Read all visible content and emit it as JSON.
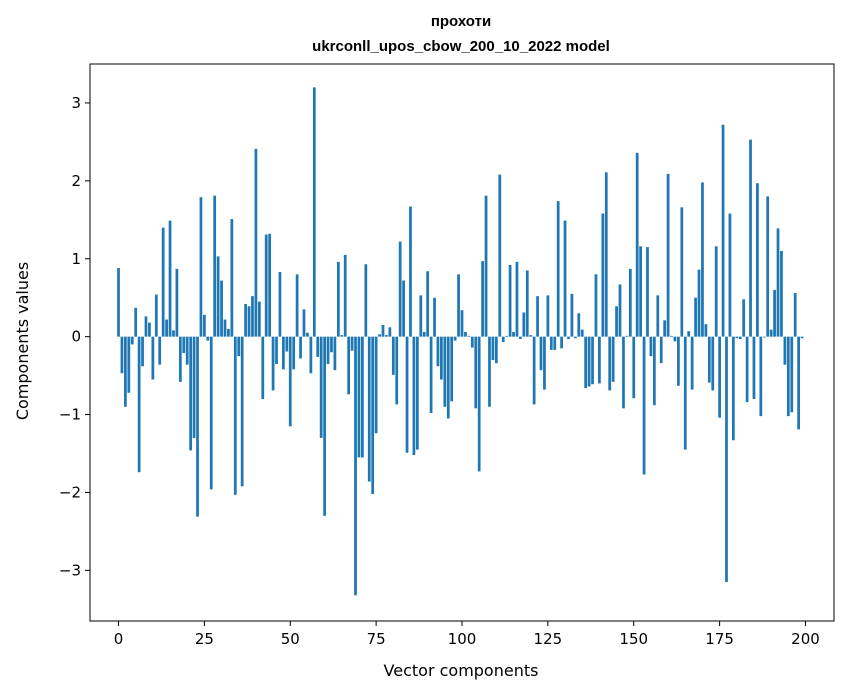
{
  "chart_data": {
    "type": "bar",
    "title_line1": "прохоти",
    "title_line2": "ukrconll_upos_cbow_200_10_2022 model",
    "xlabel": "Vector components",
    "ylabel": "Components values",
    "xlim": [
      -8.3,
      208.3
    ],
    "ylim": [
      -3.65,
      3.5
    ],
    "x_ticks": [
      0,
      25,
      50,
      75,
      100,
      125,
      150,
      175,
      200
    ],
    "y_ticks": [
      -3,
      -2,
      -1,
      0,
      1,
      2,
      3
    ],
    "y_tick_labels": [
      "−3",
      "−2",
      "−1",
      "0",
      "1",
      "2",
      "3"
    ],
    "bar_color": "#1f77b4",
    "values": [
      0.88,
      -0.47,
      -0.9,
      -0.72,
      -0.1,
      0.37,
      -1.74,
      -0.38,
      0.26,
      0.18,
      -0.55,
      0.54,
      -0.36,
      1.4,
      0.22,
      1.49,
      0.08,
      0.87,
      -0.58,
      -0.21,
      -0.36,
      -1.46,
      -1.3,
      -2.31,
      1.79,
      0.28,
      -0.05,
      -1.96,
      1.81,
      1.03,
      0.72,
      0.22,
      0.1,
      1.51,
      -2.03,
      -0.25,
      -1.92,
      0.42,
      0.39,
      0.52,
      2.41,
      0.45,
      -0.8,
      1.31,
      1.32,
      -0.69,
      -0.35,
      0.83,
      -0.42,
      -0.19,
      -1.15,
      -0.42,
      0.8,
      -0.28,
      0.35,
      0.05,
      -0.47,
      3.2,
      -0.26,
      -1.3,
      -2.3,
      -0.35,
      -0.2,
      -0.43,
      0.96,
      0.02,
      1.05,
      -0.74,
      -0.18,
      -3.32,
      -1.55,
      -1.55,
      0.93,
      -1.86,
      -2.02,
      -1.24,
      0.03,
      0.15,
      0.02,
      0.12,
      -0.49,
      -0.87,
      1.22,
      0.72,
      -1.49,
      1.67,
      -1.52,
      -1.45,
      0.53,
      0.06,
      0.84,
      -0.98,
      0.5,
      -0.38,
      -0.55,
      -0.9,
      -1.05,
      -0.83,
      -0.05,
      0.8,
      0.34,
      0.06,
      0.01,
      -0.14,
      -0.92,
      -1.73,
      0.97,
      1.81,
      -0.9,
      -0.3,
      -0.34,
      2.08,
      -0.07,
      0.01,
      0.92,
      0.06,
      0.96,
      -0.03,
      0.31,
      0.85,
      0.02,
      -0.87,
      0.52,
      -0.43,
      -0.68,
      0.53,
      -0.17,
      -0.17,
      1.74,
      -0.15,
      1.49,
      -0.03,
      0.55,
      -0.02,
      0.3,
      0.09,
      -0.66,
      -0.64,
      -0.61,
      0.8,
      -0.6,
      1.58,
      2.11,
      -0.69,
      -0.58,
      0.39,
      0.67,
      -0.92,
      0.01,
      0.87,
      -0.79,
      2.36,
      1.16,
      -1.77,
      1.15,
      -0.25,
      -0.88,
      0.53,
      -0.34,
      0.21,
      2.09,
      0.01,
      -0.06,
      -0.63,
      1.66,
      -1.45,
      0.07,
      -0.68,
      0.5,
      0.86,
      1.98,
      0.16,
      -0.59,
      -0.69,
      1.16,
      -1.04,
      2.72,
      -3.15,
      1.58,
      -1.33,
      -0.02,
      -0.03,
      0.48,
      -0.84,
      2.53,
      -0.8,
      1.97,
      -1.02,
      -0.01,
      1.8,
      0.09,
      0.6,
      1.39,
      1.1,
      -0.36,
      -1.02,
      -0.97,
      0.56,
      -1.19,
      -0.02
    ]
  }
}
